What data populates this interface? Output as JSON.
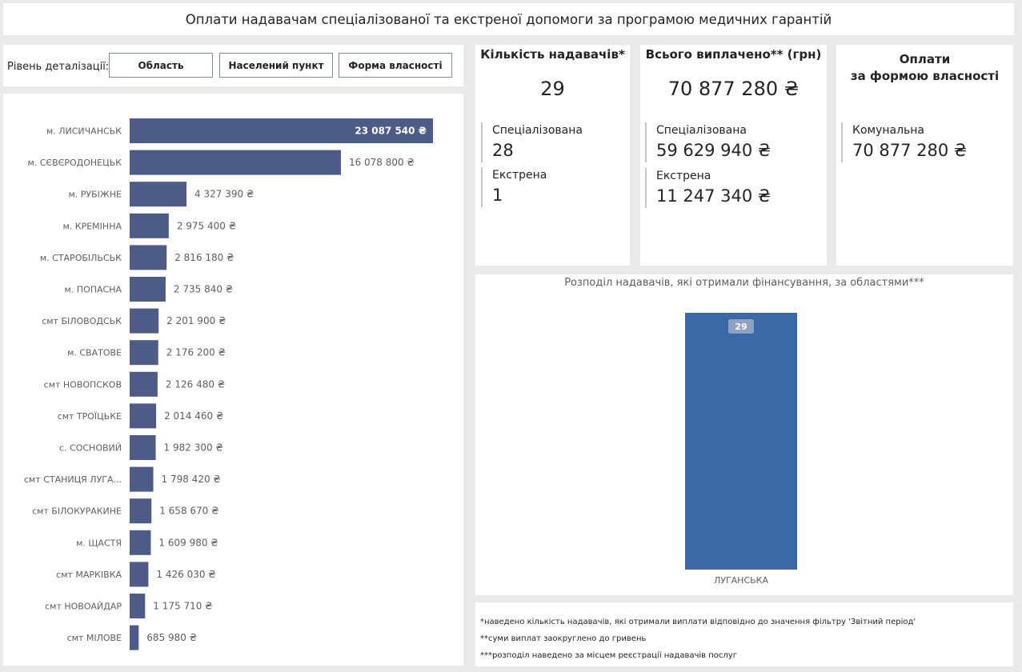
{
  "title": "Оплати надавачам спеціалізованої та екстреної допомоги за програмою медичних гарантій",
  "filter": {
    "label": "Рівень деталізації:",
    "buttons": [
      "Область",
      "Населений пункт",
      "Форма власності"
    ]
  },
  "cards": {
    "count": {
      "title": "Кількість надавачів*",
      "value": "29",
      "rows": [
        {
          "label": "Спеціалізована",
          "value": "28"
        },
        {
          "label": "Екстрена",
          "value": "1"
        }
      ]
    },
    "total": {
      "title": "Всього виплачено** (грн)",
      "value": "70 877 280 ₴",
      "rows": [
        {
          "label": "Спеціалізована",
          "value": "59 629 940 ₴"
        },
        {
          "label": "Екстрена",
          "value": "11 247 340 ₴"
        }
      ]
    },
    "ownership": {
      "title_line1": "Оплати",
      "title_line2": "за формою власності",
      "rows": [
        {
          "label": "Комунальна",
          "value": "70 877 280 ₴"
        }
      ]
    }
  },
  "notes": [
    "*наведено кількість надавачів, які отримали виплати відповідно до значення фільтру 'Звітний період'",
    "**суми виплат заокруглено до гривень",
    "***розподіл наведено за місцем реєстрації надавачів послуг"
  ],
  "colors": {
    "bar": "#4d5b87",
    "column": "#3a6aa6",
    "column_label_bg": "#8ea3c2"
  },
  "chart_data": [
    {
      "type": "bar",
      "orientation": "horizontal",
      "title": "",
      "categories": [
        "м. ЛИСИЧАНСЬК",
        "м. СЄВЄРОДОНЕЦЬК",
        "м. РУБІЖНЕ",
        "м. КРЕМІННА",
        "м. СТАРОБІЛЬСЬК",
        "м. ПОПАСНА",
        "смт БІЛОВОДСЬК",
        "м. СВАТОВЕ",
        "смт НОВОПСКОВ",
        "смт ТРОЇЦЬКЕ",
        "с. СОСНОВИЙ",
        "смт СТАНИЦЯ ЛУГА...",
        "смт БІЛОКУРАКИНЕ",
        "м. ЩАСТЯ",
        "смт МАРКІВКА",
        "смт НОВОАЙДАР",
        "смт МІЛОВЕ"
      ],
      "values": [
        23087540,
        16078800,
        4327390,
        2975400,
        2816180,
        2735840,
        2201900,
        2176200,
        2126480,
        2014460,
        1982300,
        1798420,
        1658670,
        1609980,
        1426030,
        1175710,
        685980
      ],
      "value_labels": [
        "23 087 540 ₴",
        "16 078 800 ₴",
        "4 327 390 ₴",
        "2 975 400 ₴",
        "2 816 180 ₴",
        "2 735 840 ₴",
        "2 201 900 ₴",
        "2 176 200 ₴",
        "2 126 480 ₴",
        "2 014 460 ₴",
        "1 982 300 ₴",
        "1 798 420 ₴",
        "1 658 670 ₴",
        "1 609 980 ₴",
        "1 426 030 ₴",
        "1 175 710 ₴",
        "685 980 ₴"
      ],
      "xlim": [
        0,
        23087540
      ]
    },
    {
      "type": "bar",
      "orientation": "vertical",
      "title": "Розподіл надавачів, які отримали фінансування, за областями***",
      "categories": [
        "ЛУГАНСЬКА"
      ],
      "values": [
        29
      ],
      "value_labels": [
        "29"
      ],
      "ylim": [
        0,
        29
      ]
    }
  ]
}
